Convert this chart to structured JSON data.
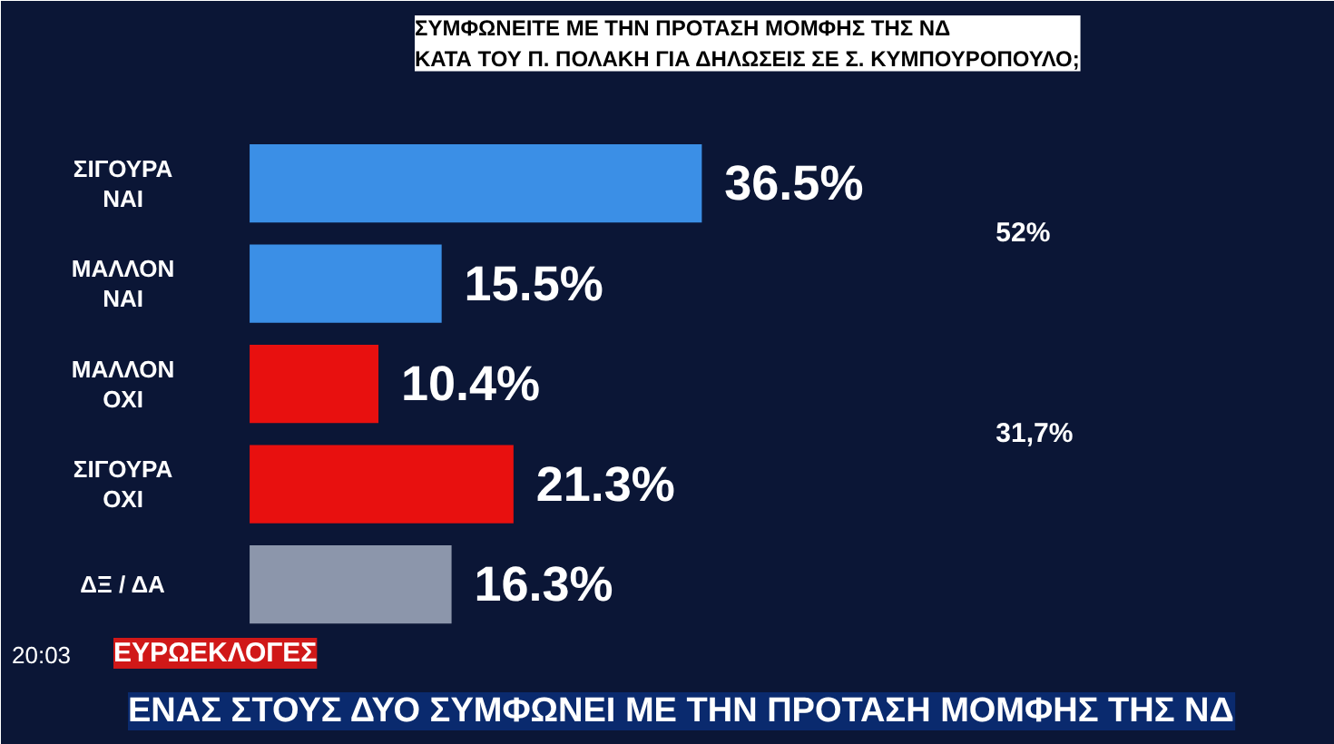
{
  "chart_data": {
    "type": "bar",
    "orientation": "horizontal",
    "title": "ΣΥΜΦΩΝΕΙΤΕ ΜΕ ΤΗΝ ΠΡΟΤΑΣΗ ΜΟΜΦΗΣ ΤΗΣ ΝΔ\nΚΑΤΑ ΤΟΥ Π. ΠΟΛΑΚΗ ΓΙΑ ΔΗΛΩΣΕΙΣ ΣΕ Σ. ΚΥΜΠΟΥΡΟΠΟΥΛΟ;",
    "subtitle": "ΕΝΑΣ ΣΤΟΥΣ ΔΥΟ ΣΥΜΦΩΝΕΙ ΜΕ ΤΗΝ ΠΡΟΤΑΣΗ ΜΟΜΦΗΣ ΤΗΣ ΝΔ",
    "categories": [
      "ΣΙΓΟΥΡΑ\nΝΑΙ",
      "ΜΑΛΛΟΝ\nΝΑΙ",
      "ΜΑΛΛΟΝ\nΟΧΙ",
      "ΣΙΓΟΥΡΑ\nΟΧΙ",
      "ΔΞ / ΔΑ"
    ],
    "values": [
      36.5,
      15.5,
      10.4,
      21.3,
      16.3
    ],
    "value_labels": [
      "36.5%",
      "15.5%",
      "10.4%",
      "21.3%",
      "16.3%"
    ],
    "colors": [
      "#3b8fe6",
      "#3b8fe6",
      "#e8100f",
      "#e8100f",
      "#8c96ab"
    ],
    "annotations": [
      "52%",
      "31,7%",
      "ΕΥΡΩΕΚΛΟΓΕΣ",
      "20:03"
    ]
  }
}
